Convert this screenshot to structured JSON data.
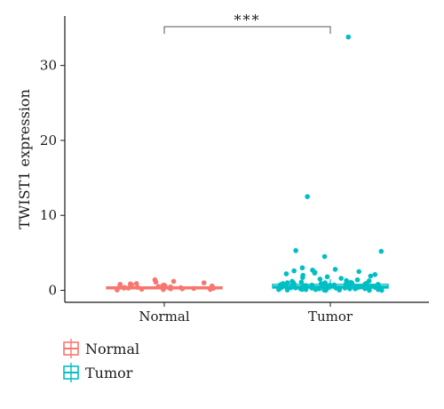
{
  "chart_data": {
    "type": "boxplot-with-jitter",
    "title": "",
    "xlabel": "",
    "ylabel": "TWIST1 expression",
    "categories": [
      "Normal",
      "Tumor"
    ],
    "ylim": [
      -1.6,
      36.6
    ],
    "yticks": [
      0,
      10,
      20,
      30
    ],
    "grid": false,
    "legend": {
      "position": "bottom-left",
      "entries": [
        {
          "label": "Normal",
          "color": "#F8766D"
        },
        {
          "label": "Tumor",
          "color": "#00BFC4"
        }
      ]
    },
    "significance": {
      "from": "Normal",
      "to": "Tumor",
      "label": "***"
    },
    "series": [
      {
        "category": "Normal",
        "color": "#F8766D",
        "box": {
          "min": 0.05,
          "q1": 0.2,
          "median": 0.3,
          "q3": 0.45,
          "max": 0.9
        },
        "points": [
          0.1,
          0.2,
          0.3,
          0.4,
          0.5,
          0.6,
          0.8,
          1.0,
          1.2,
          1.4,
          0.15,
          0.25,
          0.35,
          0.55,
          0.7,
          0.9,
          0.2,
          0.3,
          0.45,
          0.65,
          0.85,
          0.05,
          0.12,
          0.28,
          0.38,
          0.48,
          0.58,
          0.75,
          1.1,
          0.33
        ]
      },
      {
        "category": "Tumor",
        "color": "#00BFC4",
        "box": {
          "min": 0.0,
          "q1": 0.3,
          "median": 0.5,
          "q3": 0.8,
          "max": 1.5
        },
        "points": [
          33.8,
          12.5,
          5.3,
          5.2,
          4.5,
          3.0,
          2.8,
          2.7,
          2.6,
          2.5,
          2.4,
          2.3,
          2.2,
          2.1,
          2.0,
          1.9,
          1.8,
          1.7,
          1.6,
          1.5,
          1.4,
          1.3,
          1.2,
          1.1,
          1.0,
          1.0,
          0.9,
          0.9,
          0.8,
          0.8,
          0.8,
          0.7,
          0.7,
          0.7,
          0.6,
          0.6,
          0.6,
          0.6,
          0.5,
          0.5,
          0.5,
          0.5,
          0.5,
          0.4,
          0.4,
          0.4,
          0.4,
          0.4,
          0.3,
          0.3,
          0.3,
          0.3,
          0.3,
          0.2,
          0.2,
          0.2,
          0.2,
          0.2,
          0.1,
          0.1,
          0.1,
          0.1,
          0.05,
          0.05,
          0.05,
          0.0,
          0.0,
          0.0,
          0.15,
          0.25,
          0.35,
          0.45,
          0.55,
          0.65,
          0.75,
          0.85,
          0.95,
          1.05,
          1.15,
          1.25,
          0.12,
          0.22,
          0.32,
          0.42,
          0.52,
          0.62,
          0.72,
          0.82,
          0.92,
          1.02
        ]
      }
    ]
  }
}
